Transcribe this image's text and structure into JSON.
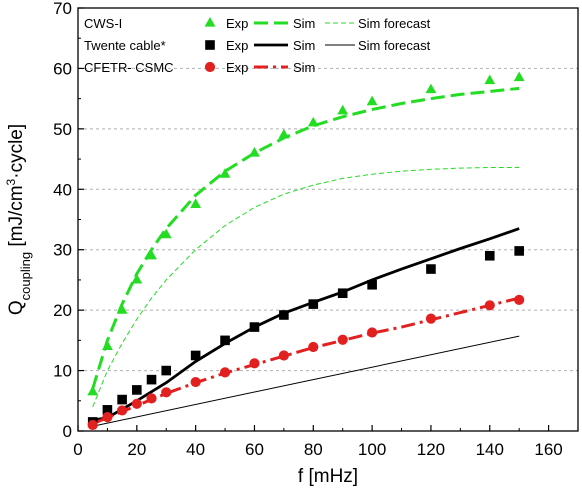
{
  "chart_data": {
    "type": "scatter",
    "xlabel": "f [mHz]",
    "ylabel": {
      "main": "Q",
      "sub": "coupling",
      "units_pre": " [mJ/cm",
      "units_sup": "3",
      "units_post": "·cycle]"
    },
    "xlim": [
      0,
      170
    ],
    "ylim": [
      0,
      70
    ],
    "x_ticks": [
      0,
      20,
      40,
      60,
      80,
      100,
      120,
      140,
      160
    ],
    "y_ticks": [
      0,
      10,
      20,
      30,
      40,
      50,
      60,
      70
    ],
    "grid": "horizontal dashed",
    "legend_position": "top-left",
    "legend": {
      "groups": [
        {
          "label": "CWS-I",
          "entries": [
            "Exp",
            "Sim",
            "Sim forecast"
          ]
        },
        {
          "label": "Twente cable*",
          "entries": [
            "Exp",
            "Sim",
            "Sim forecast"
          ]
        },
        {
          "label": "CFETR- CSMC",
          "entries": [
            "Exp",
            "Sim"
          ]
        }
      ]
    },
    "colors": {
      "green": "#22dd22",
      "black": "#000000",
      "red": "#e32020",
      "grid": "#b0b0b0"
    },
    "series": [
      {
        "group": "CWS-I",
        "name": "Exp",
        "kind": "markers",
        "marker": "triangle",
        "color": "#22dd22",
        "x": [
          5,
          10,
          15,
          20,
          25,
          30,
          40,
          50,
          60,
          70,
          80,
          90,
          100,
          120,
          140,
          150
        ],
        "y": [
          6.5,
          14,
          20,
          25,
          29,
          32.5,
          37.5,
          42.5,
          46,
          49,
          51,
          53,
          54.5,
          56.5,
          58,
          58.5
        ]
      },
      {
        "group": "CWS-I",
        "name": "Sim",
        "kind": "line",
        "style": "dash",
        "color": "#22dd22",
        "x": [
          5,
          10,
          15,
          20,
          25,
          30,
          40,
          50,
          60,
          70,
          80,
          90,
          100,
          110,
          120,
          130,
          140,
          150
        ],
        "y": [
          7,
          15,
          21,
          26,
          30,
          33.5,
          39,
          43,
          46,
          48.5,
          50.5,
          52,
          53.2,
          54.2,
          55,
          55.7,
          56.2,
          56.7
        ]
      },
      {
        "group": "CWS-I",
        "name": "Sim forecast",
        "kind": "line",
        "style": "thin-dash",
        "color": "#22dd22",
        "x": [
          5,
          10,
          15,
          20,
          25,
          30,
          40,
          50,
          60,
          70,
          80,
          90,
          100,
          110,
          120,
          130,
          140,
          150
        ],
        "y": [
          4,
          10,
          14.5,
          18.5,
          22,
          25,
          30,
          34,
          37,
          39.2,
          40.7,
          41.8,
          42.5,
          43,
          43.3,
          43.5,
          43.6,
          43.6
        ]
      },
      {
        "group": "Twente cable*",
        "name": "Exp",
        "kind": "markers",
        "marker": "square",
        "color": "#000000",
        "x": [
          5,
          10,
          15,
          20,
          25,
          30,
          40,
          50,
          60,
          70,
          80,
          90,
          100,
          120,
          140,
          150
        ],
        "y": [
          1.5,
          3.5,
          5.2,
          6.8,
          8.5,
          10,
          12.5,
          15,
          17.2,
          19.2,
          21,
          22.8,
          24.2,
          26.8,
          29,
          29.8
        ]
      },
      {
        "group": "Twente cable*",
        "name": "Sim",
        "kind": "line",
        "style": "solid",
        "color": "#000000",
        "x": [
          5,
          10,
          20,
          30,
          40,
          50,
          60,
          70,
          80,
          90,
          100,
          110,
          120,
          130,
          140,
          150
        ],
        "y": [
          1.8,
          2.2,
          5,
          8,
          11.5,
          14.5,
          17.2,
          19.5,
          21.3,
          23,
          25,
          26.8,
          28.5,
          30.2,
          31.8,
          33.5
        ]
      },
      {
        "group": "Twente cable*",
        "name": "Sim forecast",
        "kind": "line",
        "style": "thin-solid",
        "color": "#000000",
        "x": [
          5,
          150
        ],
        "y": [
          0.8,
          15.7
        ]
      },
      {
        "group": "CFETR- CSMC",
        "name": "Exp",
        "kind": "markers",
        "marker": "circle",
        "color": "#e32020",
        "x": [
          5,
          10,
          15,
          20,
          25,
          30,
          40,
          50,
          60,
          70,
          80,
          90,
          100,
          120,
          140,
          150
        ],
        "y": [
          1,
          2.3,
          3.4,
          4.5,
          5.4,
          6.4,
          8.1,
          9.7,
          11.2,
          12.5,
          13.9,
          15.1,
          16.3,
          18.6,
          20.8,
          21.7
        ]
      },
      {
        "group": "CFETR- CSMC",
        "name": "Sim",
        "kind": "line",
        "style": "dashdot",
        "color": "#e32020",
        "x": [
          5,
          10,
          20,
          30,
          40,
          50,
          60,
          70,
          80,
          90,
          100,
          110,
          120,
          130,
          140,
          150
        ],
        "y": [
          1.2,
          2.2,
          4.2,
          6.2,
          8,
          9.6,
          11,
          12.4,
          13.8,
          15,
          16.2,
          17.2,
          18.4,
          19.6,
          20.8,
          22
        ]
      }
    ]
  }
}
